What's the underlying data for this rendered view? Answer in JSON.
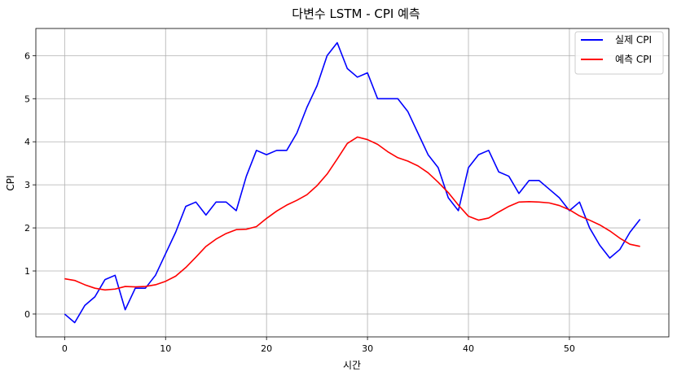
{
  "chart_data": {
    "type": "line",
    "title": "다변수 LSTM - CPI 예측",
    "xlabel": "시간",
    "ylabel": "CPI",
    "xlim": [
      -2.85,
      59.85
    ],
    "ylim": [
      -0.53,
      6.63
    ],
    "xticks": [
      0,
      10,
      20,
      30,
      40,
      50
    ],
    "yticks": [
      0,
      1,
      2,
      3,
      4,
      5,
      6
    ],
    "grid": true,
    "legend_position": "top-right",
    "x": [
      0,
      1,
      2,
      3,
      4,
      5,
      6,
      7,
      8,
      9,
      10,
      11,
      12,
      13,
      14,
      15,
      16,
      17,
      18,
      19,
      20,
      21,
      22,
      23,
      24,
      25,
      26,
      27,
      28,
      29,
      30,
      31,
      32,
      33,
      34,
      35,
      36,
      37,
      38,
      39,
      40,
      41,
      42,
      43,
      44,
      45,
      46,
      47,
      48,
      49,
      50,
      51,
      52,
      53,
      54,
      55,
      56,
      57
    ],
    "series": [
      {
        "name": "실제 CPI",
        "color": "#0000ff",
        "values": [
          0.0,
          -0.2,
          0.2,
          0.4,
          0.8,
          0.9,
          0.1,
          0.6,
          0.6,
          0.9,
          1.4,
          1.9,
          2.5,
          2.6,
          2.3,
          2.6,
          2.6,
          2.4,
          3.2,
          3.8,
          3.7,
          3.8,
          3.8,
          4.2,
          4.8,
          5.3,
          6.0,
          6.3,
          5.7,
          5.5,
          5.6,
          5.0,
          5.0,
          5.0,
          4.7,
          4.2,
          3.7,
          3.4,
          2.7,
          2.4,
          3.4,
          3.7,
          3.8,
          3.3,
          3.2,
          2.8,
          3.1,
          3.1,
          2.9,
          2.7,
          2.4,
          2.6,
          2.0,
          1.6,
          1.3,
          1.5,
          1.9,
          2.2
        ]
      },
      {
        "name": "예측 CPI",
        "color": "#ff0000",
        "values": [
          0.82,
          0.78,
          0.68,
          0.6,
          0.56,
          0.58,
          0.64,
          0.63,
          0.64,
          0.68,
          0.76,
          0.88,
          1.08,
          1.32,
          1.57,
          1.74,
          1.87,
          1.96,
          1.97,
          2.03,
          2.22,
          2.39,
          2.53,
          2.64,
          2.77,
          2.98,
          3.25,
          3.6,
          3.96,
          4.11,
          4.05,
          3.94,
          3.77,
          3.63,
          3.55,
          3.44,
          3.28,
          3.06,
          2.82,
          2.53,
          2.27,
          2.18,
          2.23,
          2.37,
          2.5,
          2.6,
          2.61,
          2.6,
          2.58,
          2.52,
          2.42,
          2.28,
          2.18,
          2.07,
          1.93,
          1.76,
          1.62,
          1.57
        ]
      }
    ]
  }
}
